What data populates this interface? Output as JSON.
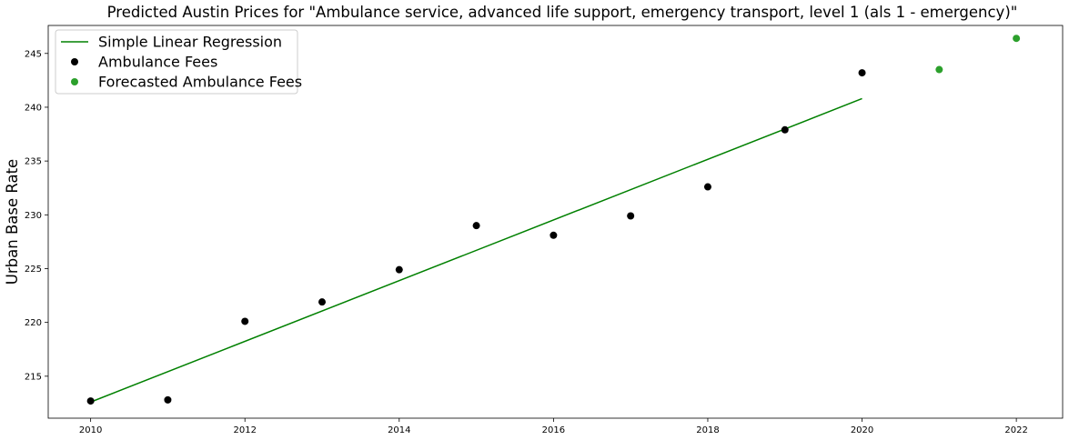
{
  "chart_data": {
    "type": "scatter",
    "title": "Predicted Austin Prices for \"Ambulance service, advanced life support, emergency transport, level 1 (als 1 - emergency)\"",
    "xlabel": "",
    "ylabel": "Urban Base Rate",
    "xlim": [
      2009.45,
      2022.6
    ],
    "ylim": [
      211.1,
      247.6
    ],
    "xticks": [
      2010,
      2012,
      2014,
      2016,
      2018,
      2020,
      2022
    ],
    "yticks": [
      215,
      220,
      225,
      230,
      235,
      240,
      245
    ],
    "grid": false,
    "legend": "top-left",
    "series": [
      {
        "name": "Simple Linear Regression",
        "kind": "line",
        "color": "#008000",
        "x": [
          2010,
          2020
        ],
        "y": [
          212.6,
          240.8
        ]
      },
      {
        "name": "Ambulance Fees",
        "kind": "scatter",
        "color": "#000000",
        "x": [
          2010,
          2011,
          2012,
          2013,
          2014,
          2015,
          2016,
          2017,
          2018,
          2019,
          2020
        ],
        "y": [
          212.7,
          212.8,
          220.1,
          221.9,
          224.9,
          229.0,
          228.1,
          229.9,
          232.6,
          237.9,
          243.2
        ]
      },
      {
        "name": "Forecasted Ambulance Fees",
        "kind": "scatter",
        "color": "#2ca02c",
        "x": [
          2021,
          2022
        ],
        "y": [
          243.5,
          246.4
        ]
      }
    ]
  }
}
